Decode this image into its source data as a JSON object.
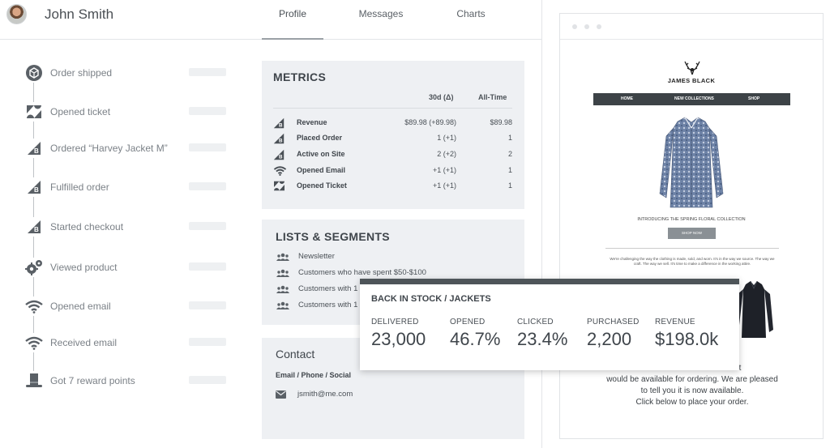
{
  "header": {
    "user_name": "John Smith",
    "tabs": [
      {
        "label": "Profile",
        "active": true
      },
      {
        "label": "Messages",
        "active": false
      },
      {
        "label": "Charts",
        "active": false
      }
    ]
  },
  "timeline": [
    {
      "label": "Order shipped",
      "icon": "package-icon"
    },
    {
      "label": "Opened ticket",
      "icon": "zendesk-icon"
    },
    {
      "label": "Ordered “Harvey Jacket M”",
      "icon": "bigcommerce-icon"
    },
    {
      "label": "Fulfilled order",
      "icon": "bigcommerce-icon"
    },
    {
      "label": "Started checkout",
      "icon": "bigcommerce-icon"
    },
    {
      "label": "Viewed product",
      "icon": "gears-icon"
    },
    {
      "label": "Opened email",
      "icon": "wifi-icon"
    },
    {
      "label": "Received email",
      "icon": "wifi-icon"
    },
    {
      "label": "Got 7 reward points",
      "icon": "top-hat-icon"
    }
  ],
  "metrics": {
    "title": "METRICS",
    "col_30d": "30d (Δ)",
    "col_all": "All-Time",
    "rows": [
      {
        "label": "Revenue",
        "d30": "$89.98 (+89.98)",
        "all": "$89.98",
        "icon": "bigcommerce-icon"
      },
      {
        "label": "Placed Order",
        "d30": "1 (+1)",
        "all": "1",
        "icon": "bigcommerce-icon"
      },
      {
        "label": "Active on Site",
        "d30": "2 (+2)",
        "all": "2",
        "icon": "bigcommerce-icon"
      },
      {
        "label": "Opened Email",
        "d30": "+1 (+1)",
        "all": "1",
        "icon": "wifi-icon"
      },
      {
        "label": "Opened Ticket",
        "d30": "+1 (+1)",
        "all": "1",
        "icon": "zendesk-icon"
      }
    ]
  },
  "lists": {
    "title": "LISTS & SEGMENTS",
    "items": [
      "Newsletter",
      "Customers who have spent $50-$100",
      "Customers with 1",
      "Customers with 1"
    ]
  },
  "contact": {
    "title": "Contact",
    "subtitle": "Email / Phone / Social",
    "email": "jsmith@me.com"
  },
  "popup": {
    "title": "BACK IN STOCK / JACKETS",
    "stats": [
      {
        "label": "DELIVERED",
        "value": "23,000"
      },
      {
        "label": "OPENED",
        "value": "46.7%"
      },
      {
        "label": "CLICKED",
        "value": "23.4%"
      },
      {
        "label": "PURCHASED",
        "value": "2,200"
      },
      {
        "label": "REVENUE",
        "value": "$198.0k"
      }
    ]
  },
  "email_preview": {
    "brand": "JAMES BLACK",
    "nav": [
      "HOME",
      "NEW COLLECTIONS",
      "SHOP"
    ],
    "intro": "INTRODUCING THE SPRING FLORAL COLLECTION",
    "shop_button": "SHOP NOW",
    "paragraph": "We're challenging the way the clothing is made, sold, and worn. It's in the way we source. The way we craft. The way we sell. It's time to make a difference in the working attire.",
    "message_line1": "Floral Shirt",
    "message_line2": "would be available for ordering. We are pleased",
    "message_line3": "to tell you it is now available.",
    "message_line4": "Click below to place your order."
  },
  "colors": {
    "card_bg": "#eef0f3",
    "popup_bar": "#4e5559",
    "email_nav": "#3d4347"
  }
}
